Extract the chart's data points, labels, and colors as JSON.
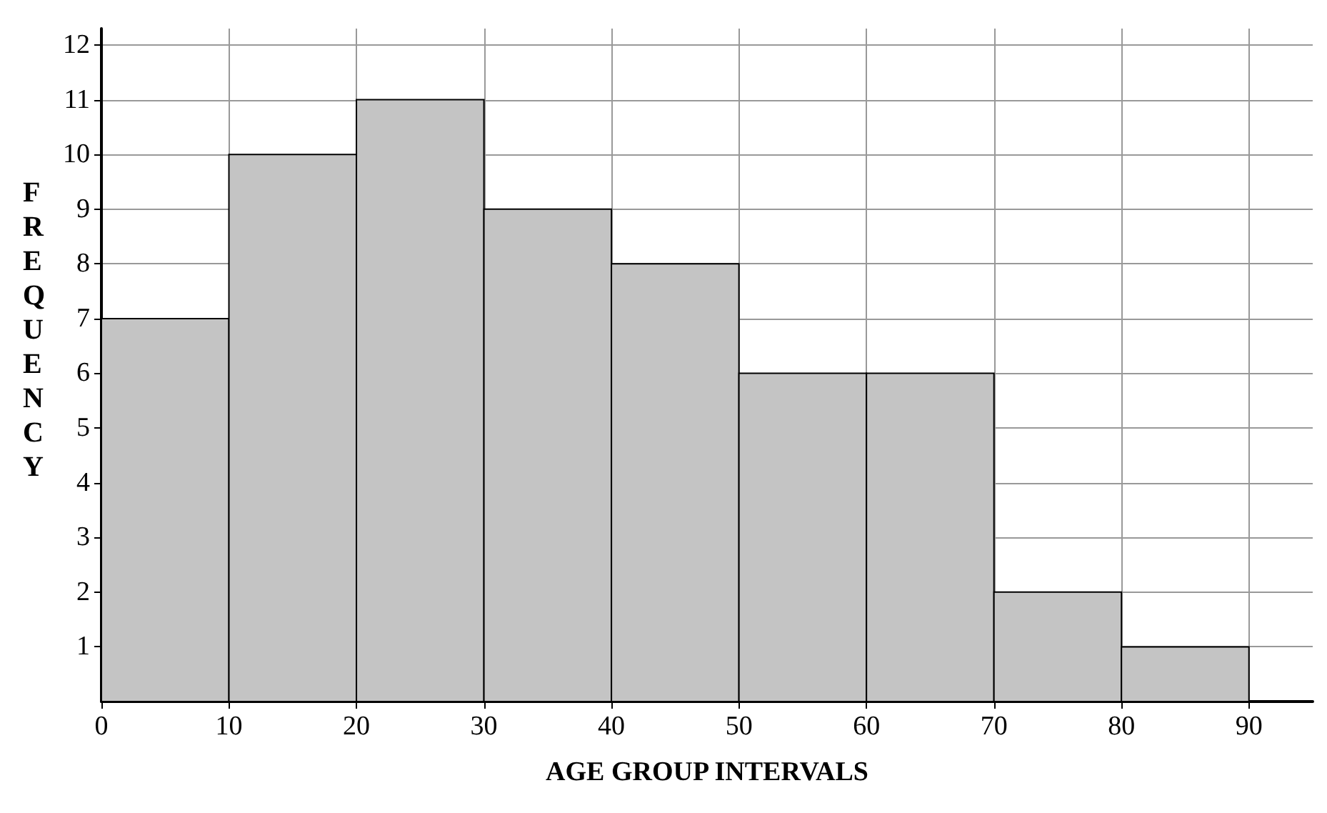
{
  "chart_data": {
    "type": "histogram",
    "xlabel": "AGE GROUP INTERVALS",
    "ylabel": "FREQUENCY",
    "bins": [
      0,
      10,
      20,
      30,
      40,
      50,
      60,
      70,
      80,
      90
    ],
    "values": [
      7,
      10,
      11,
      9,
      8,
      6,
      6,
      2,
      1
    ],
    "color": "#c4c4c4",
    "xlim": [
      0,
      95
    ],
    "xticks": [
      0,
      10,
      20,
      30,
      40,
      50,
      60,
      70,
      80,
      90
    ],
    "ylim": [
      0,
      12.3
    ],
    "yticks": [
      1,
      2,
      3,
      4,
      5,
      6,
      7,
      8,
      9,
      10,
      11,
      12
    ],
    "grid": true
  }
}
